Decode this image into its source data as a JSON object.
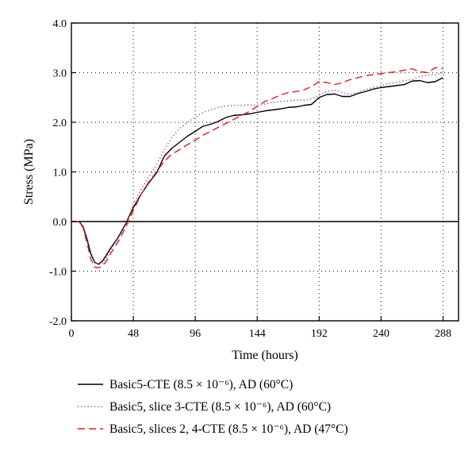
{
  "chart_data": {
    "type": "line",
    "title": "",
    "xlabel": "Time (hours)",
    "ylabel": "Stress (MPa)",
    "xlim": [
      0,
      300
    ],
    "ylim": [
      -2.0,
      4.0
    ],
    "x_ticks": [
      0,
      48,
      96,
      144,
      192,
      240,
      288
    ],
    "y_ticks": [
      -2.0,
      -1.0,
      0.0,
      1.0,
      2.0,
      3.0,
      4.0
    ],
    "x_tick_labels": [
      "0",
      "48",
      "96",
      "144",
      "192",
      "240",
      "288"
    ],
    "y_tick_labels": [
      "-2.0",
      "-1.0",
      "0.0",
      "1.0",
      "2.0",
      "3.0",
      "4.0"
    ],
    "grid": true,
    "zero_line": true,
    "legend_position": "bottom",
    "series": [
      {
        "name": "Basic5-CTE (8.5 × 10⁻⁶), AD (60°C)",
        "color": "#000000",
        "dash": "solid",
        "x": [
          0,
          3,
          6,
          9,
          12,
          15,
          18,
          21,
          24,
          27,
          30,
          36,
          42,
          45,
          48,
          54,
          60,
          66,
          72,
          78,
          84,
          90,
          96,
          102,
          108,
          114,
          120,
          126,
          132,
          138,
          144,
          150,
          156,
          162,
          168,
          174,
          180,
          186,
          192,
          198,
          204,
          210,
          216,
          222,
          228,
          234,
          240,
          246,
          252,
          258,
          264,
          270,
          276,
          282,
          288
        ],
        "y": [
          0.0,
          0.0,
          0.0,
          -0.1,
          -0.35,
          -0.65,
          -0.82,
          -0.86,
          -0.8,
          -0.68,
          -0.55,
          -0.33,
          -0.05,
          0.12,
          0.28,
          0.55,
          0.78,
          0.98,
          1.32,
          1.48,
          1.6,
          1.72,
          1.82,
          1.92,
          1.96,
          2.02,
          2.1,
          2.14,
          2.15,
          2.17,
          2.2,
          2.23,
          2.25,
          2.27,
          2.3,
          2.31,
          2.34,
          2.36,
          2.5,
          2.56,
          2.57,
          2.52,
          2.52,
          2.58,
          2.62,
          2.67,
          2.7,
          2.72,
          2.74,
          2.76,
          2.83,
          2.84,
          2.8,
          2.82,
          2.9
        ]
      },
      {
        "name": "Basic5, slice 3-CTE (8.5 × 10⁻⁶), AD (60°C)",
        "color": "#8a4a78",
        "dash": "dotted",
        "x": [
          0,
          3,
          6,
          9,
          12,
          15,
          18,
          21,
          24,
          27,
          30,
          36,
          42,
          48,
          54,
          60,
          66,
          72,
          78,
          84,
          90,
          96,
          102,
          108,
          114,
          120,
          126,
          132,
          138,
          144,
          150,
          156,
          162,
          168,
          174,
          180,
          186,
          192,
          198,
          204,
          210,
          216,
          222,
          228,
          234,
          240,
          246,
          252,
          258,
          264,
          270,
          276,
          282,
          288
        ],
        "y": [
          0.0,
          0.0,
          0.0,
          -0.08,
          -0.3,
          -0.6,
          -0.8,
          -0.87,
          -0.84,
          -0.73,
          -0.6,
          -0.35,
          -0.06,
          0.35,
          0.65,
          0.9,
          1.15,
          1.45,
          1.7,
          1.88,
          2.0,
          2.1,
          2.2,
          2.25,
          2.3,
          2.33,
          2.34,
          2.34,
          2.35,
          2.34,
          2.37,
          2.4,
          2.42,
          2.43,
          2.45,
          2.44,
          2.47,
          2.55,
          2.62,
          2.65,
          2.6,
          2.56,
          2.6,
          2.66,
          2.7,
          2.74,
          2.78,
          2.8,
          2.84,
          2.86,
          2.92,
          2.95,
          2.96,
          3.0
        ]
      },
      {
        "name": "Basic5, slices 2, 4-CTE (8.5 × 10⁻⁶), AD (47°C)",
        "color": "#e01b1b",
        "dash": "dashed",
        "x": [
          0,
          3,
          6,
          9,
          12,
          15,
          18,
          21,
          24,
          27,
          30,
          36,
          42,
          48,
          54,
          60,
          66,
          72,
          78,
          84,
          90,
          96,
          102,
          108,
          114,
          120,
          126,
          132,
          138,
          144,
          150,
          156,
          162,
          168,
          174,
          180,
          186,
          192,
          198,
          204,
          210,
          216,
          222,
          228,
          234,
          240,
          246,
          252,
          258,
          264,
          270,
          276,
          282,
          288
        ],
        "y": [
          0.0,
          0.0,
          0.0,
          -0.12,
          -0.42,
          -0.75,
          -0.92,
          -0.93,
          -0.9,
          -0.8,
          -0.66,
          -0.42,
          -0.12,
          0.22,
          0.55,
          0.8,
          1.0,
          1.22,
          1.36,
          1.45,
          1.55,
          1.64,
          1.74,
          1.82,
          1.9,
          1.98,
          2.06,
          2.14,
          2.22,
          2.32,
          2.42,
          2.48,
          2.55,
          2.6,
          2.62,
          2.65,
          2.72,
          2.82,
          2.8,
          2.76,
          2.8,
          2.86,
          2.9,
          2.94,
          2.96,
          2.98,
          3.0,
          3.02,
          3.05,
          3.08,
          3.02,
          3.0,
          3.1,
          3.08
        ]
      }
    ]
  }
}
